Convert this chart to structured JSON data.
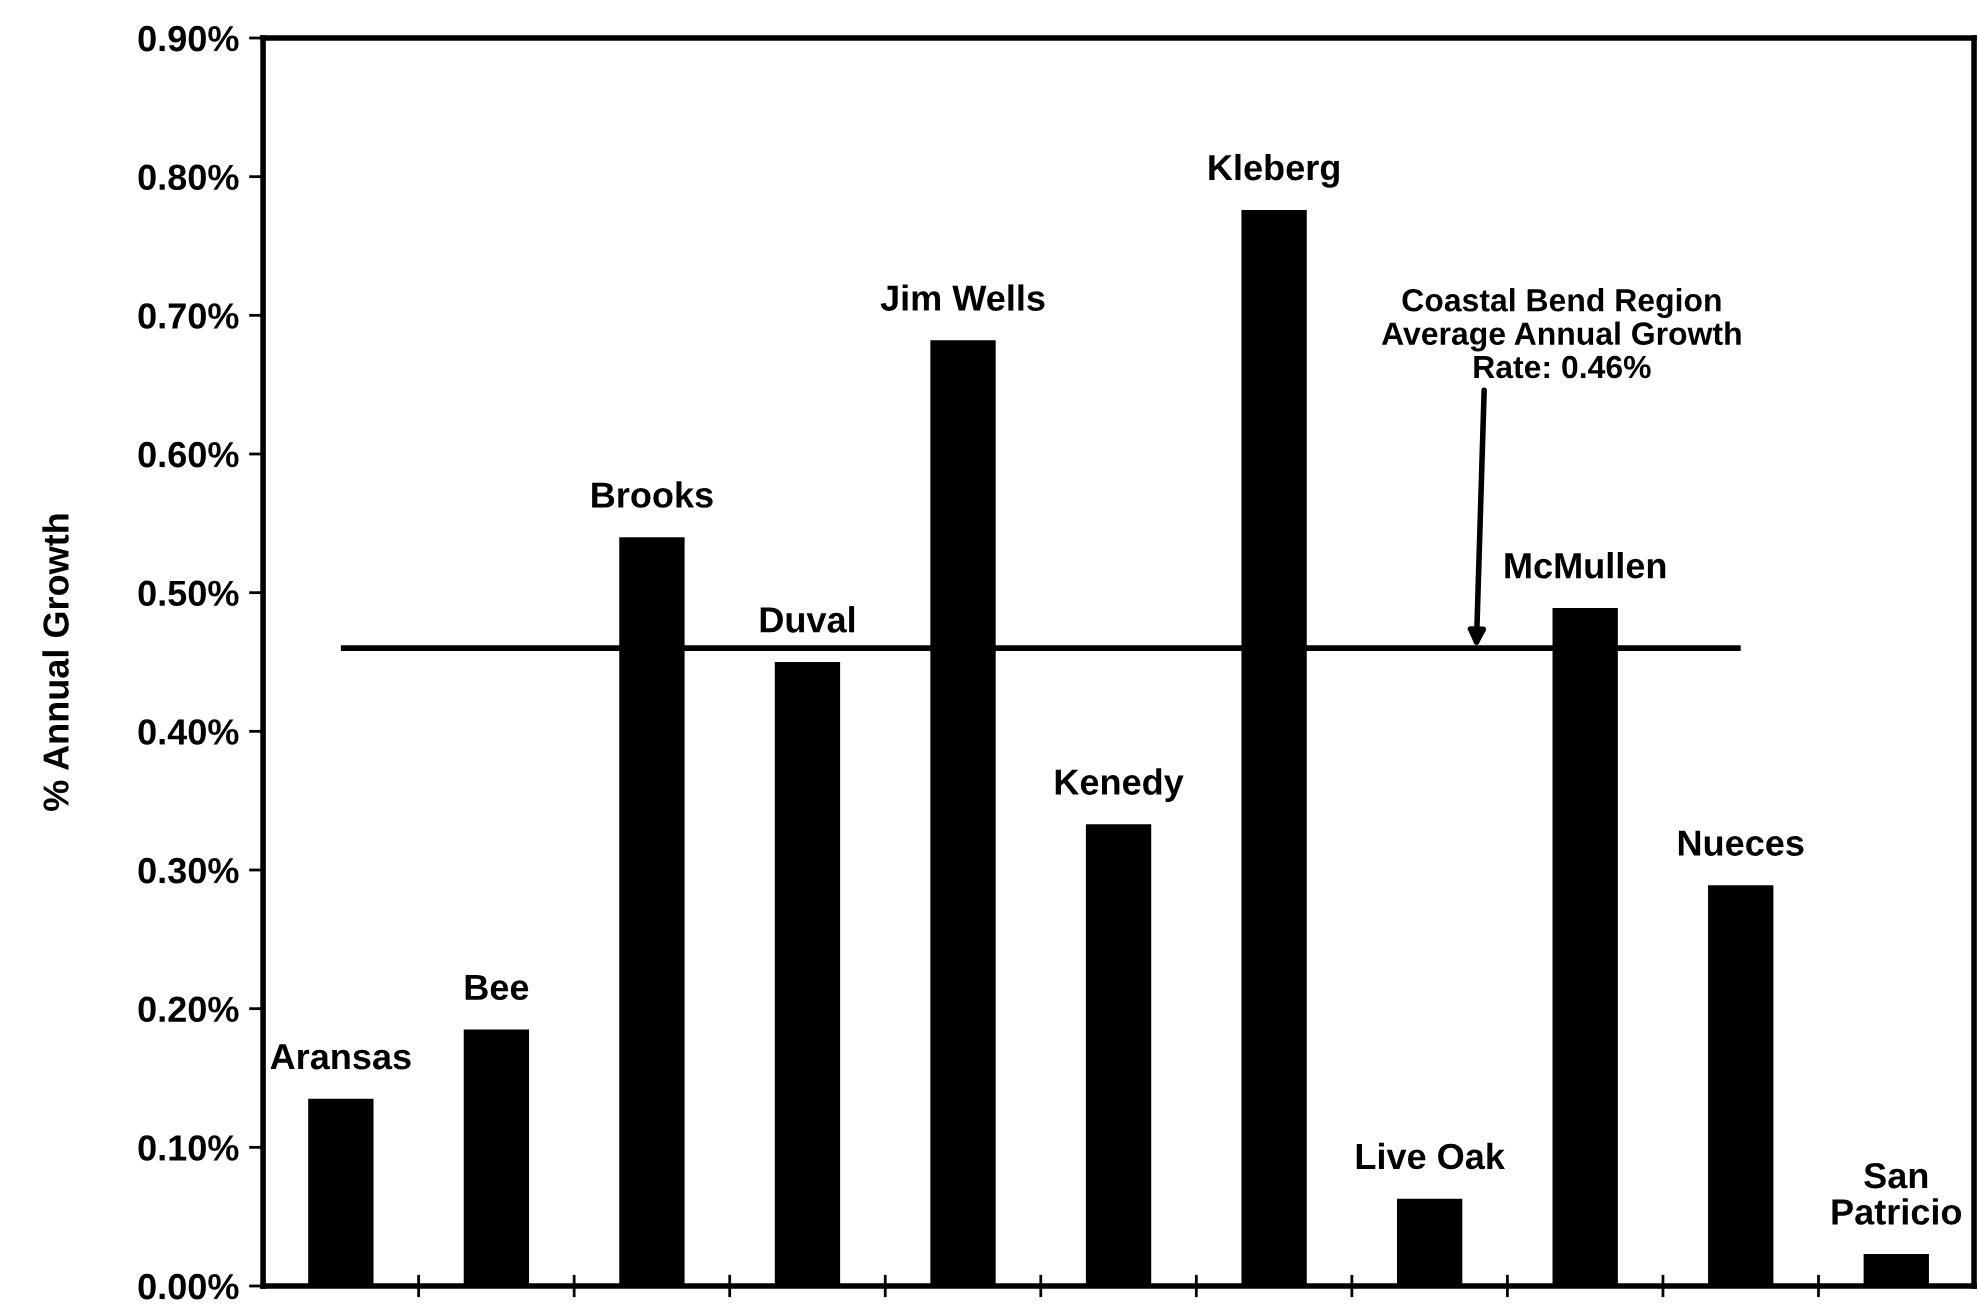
{
  "chart_data": {
    "type": "bar",
    "ylabel": "% Annual Growth",
    "categories": [
      "Aransas",
      "Bee",
      "Brooks",
      "Duval",
      "Jim Wells",
      "Kenedy",
      "Kleberg",
      "Live Oak",
      "McMullen",
      "Nueces",
      "San\nPatricio"
    ],
    "values": [
      0.135,
      0.185,
      0.54,
      0.45,
      0.682,
      0.333,
      0.776,
      0.063,
      0.489,
      0.289,
      0.023
    ],
    "color": "#000000",
    "ylim": [
      0,
      0.9
    ],
    "yticks": [
      {
        "value": 0,
        "label": "0.00%"
      },
      {
        "value": 0.1,
        "label": "0.10%"
      },
      {
        "value": 0.2,
        "label": "0.20%"
      },
      {
        "value": 0.3,
        "label": "0.30%"
      },
      {
        "value": 0.4,
        "label": "0.40%"
      },
      {
        "value": 0.5,
        "label": "0.50%"
      },
      {
        "value": 0.6,
        "label": "0.60%"
      },
      {
        "value": 0.7,
        "label": "0.70%"
      },
      {
        "value": 0.8,
        "label": "0.80%"
      },
      {
        "value": 0.9,
        "label": "0.90%"
      }
    ],
    "ref_lines": [
      {
        "axis": "y",
        "value": 0.46,
        "label": "Coastal Bend Region\nAverage Annual Growth\nRate: 0.46%",
        "color": "#000000"
      }
    ],
    "grid": false,
    "legend": false
  }
}
